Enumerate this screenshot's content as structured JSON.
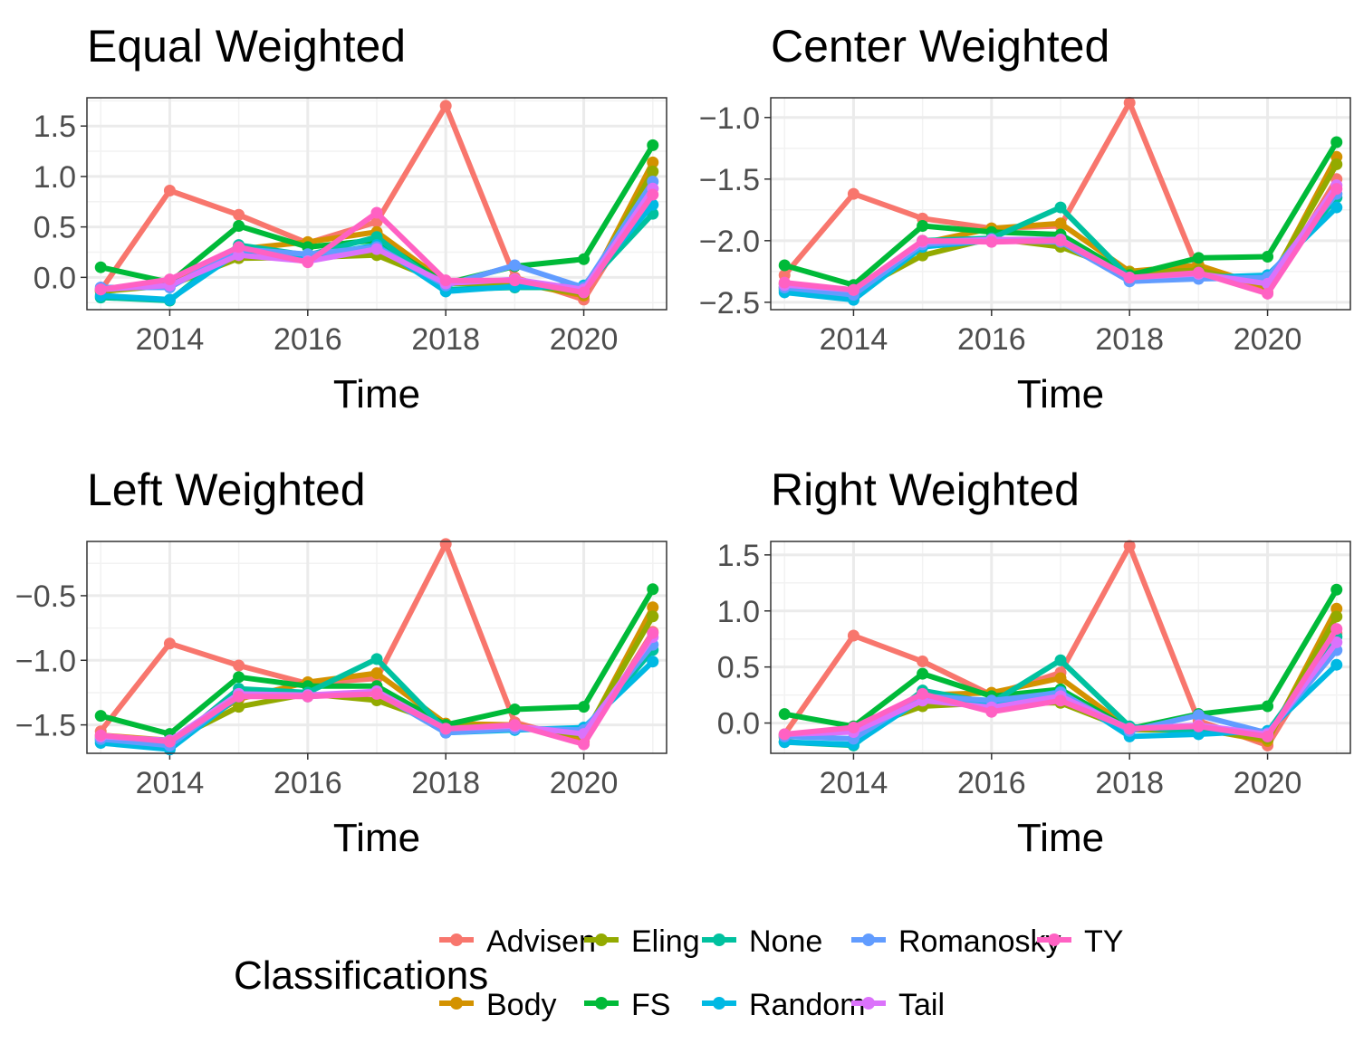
{
  "legend": {
    "title": "Classifications",
    "items": [
      {
        "name": "Advisen",
        "color": "#F8766D"
      },
      {
        "name": "Body",
        "color": "#D39200"
      },
      {
        "name": "Eling",
        "color": "#93AA00"
      },
      {
        "name": "FS",
        "color": "#00BA38"
      },
      {
        "name": "None",
        "color": "#00C19F"
      },
      {
        "name": "Random",
        "color": "#00B9E3"
      },
      {
        "name": "Romanosky",
        "color": "#619CFF"
      },
      {
        "name": "Tail",
        "color": "#DB72FB"
      },
      {
        "name": "TY",
        "color": "#FF61C3"
      }
    ]
  },
  "chart_data": [
    {
      "type": "line",
      "title": "Equal Weighted",
      "xlabel": "Time",
      "ylabel": "",
      "xlim": [
        2012.8,
        2021.2
      ],
      "ylim": [
        -0.32,
        1.78
      ],
      "xticks": [
        2014,
        2016,
        2018,
        2020
      ],
      "yticks": [
        0.0,
        0.5,
        1.0,
        1.5
      ],
      "ytick_labels": [
        "0.0",
        "0.5",
        "1.0",
        "1.5"
      ],
      "x": [
        2013,
        2014,
        2015,
        2016,
        2017,
        2018,
        2019,
        2020,
        2021
      ],
      "series": [
        {
          "name": "Advisen",
          "values": [
            -0.13,
            0.86,
            0.62,
            0.34,
            0.55,
            1.7,
            0.0,
            -0.22,
            0.88
          ]
        },
        {
          "name": "Body",
          "values": [
            -0.12,
            -0.07,
            0.28,
            0.35,
            0.45,
            -0.05,
            -0.05,
            -0.18,
            1.14
          ]
        },
        {
          "name": "Eling",
          "values": [
            -0.14,
            -0.08,
            0.19,
            0.2,
            0.22,
            -0.06,
            -0.06,
            -0.16,
            1.05
          ]
        },
        {
          "name": "FS",
          "values": [
            0.1,
            -0.05,
            0.51,
            0.3,
            0.37,
            -0.06,
            0.11,
            0.18,
            1.31
          ]
        },
        {
          "name": "None",
          "values": [
            -0.2,
            -0.23,
            0.32,
            0.22,
            0.4,
            -0.12,
            -0.1,
            -0.1,
            0.63
          ]
        },
        {
          "name": "Random",
          "values": [
            -0.18,
            -0.22,
            0.25,
            0.2,
            0.32,
            -0.14,
            -0.09,
            -0.08,
            0.72
          ]
        },
        {
          "name": "Romanosky",
          "values": [
            -0.1,
            -0.1,
            0.28,
            0.23,
            0.3,
            -0.08,
            0.12,
            -0.1,
            0.95
          ]
        },
        {
          "name": "Tail",
          "values": [
            -0.12,
            -0.08,
            0.22,
            0.16,
            0.28,
            -0.06,
            -0.02,
            -0.12,
            0.88
          ]
        },
        {
          "name": "TY",
          "values": [
            -0.12,
            -0.02,
            0.3,
            0.15,
            0.64,
            -0.03,
            -0.03,
            -0.15,
            0.82
          ]
        }
      ]
    },
    {
      "type": "line",
      "title": "Center Weighted",
      "xlabel": "Time",
      "ylabel": "",
      "xlim": [
        2012.8,
        2021.2
      ],
      "ylim": [
        -2.56,
        -0.84
      ],
      "xticks": [
        2014,
        2016,
        2018,
        2020
      ],
      "yticks": [
        -2.5,
        -2.0,
        -1.5,
        -1.0
      ],
      "ytick_labels": [
        "−2.5",
        "−2.0",
        "−1.5",
        "−1.0"
      ],
      "x": [
        2013,
        2014,
        2015,
        2016,
        2017,
        2018,
        2019,
        2020,
        2021
      ],
      "series": [
        {
          "name": "Advisen",
          "values": [
            -2.28,
            -1.62,
            -1.82,
            -1.9,
            -1.88,
            -0.88,
            -2.25,
            -2.42,
            -1.5
          ]
        },
        {
          "name": "Body",
          "values": [
            -2.35,
            -2.4,
            -2.02,
            -1.9,
            -1.86,
            -2.25,
            -2.2,
            -2.38,
            -1.32
          ]
        },
        {
          "name": "Eling",
          "values": [
            -2.38,
            -2.42,
            -2.12,
            -1.98,
            -2.05,
            -2.26,
            -2.24,
            -2.36,
            -1.38
          ]
        },
        {
          "name": "FS",
          "values": [
            -2.2,
            -2.36,
            -1.88,
            -1.93,
            -1.95,
            -2.28,
            -2.14,
            -2.13,
            -1.2
          ]
        },
        {
          "name": "None",
          "values": [
            -2.4,
            -2.45,
            -2.0,
            -1.98,
            -1.73,
            -2.3,
            -2.28,
            -2.32,
            -1.65
          ]
        },
        {
          "name": "Random",
          "values": [
            -2.42,
            -2.48,
            -2.05,
            -2.0,
            -2.0,
            -2.33,
            -2.3,
            -2.28,
            -1.73
          ]
        },
        {
          "name": "Romanosky",
          "values": [
            -2.38,
            -2.44,
            -2.03,
            -2.0,
            -2.01,
            -2.33,
            -2.31,
            -2.3,
            -1.62
          ]
        },
        {
          "name": "Tail",
          "values": [
            -2.36,
            -2.4,
            -2.01,
            -1.99,
            -1.99,
            -2.3,
            -2.27,
            -2.35,
            -1.55
          ]
        },
        {
          "name": "TY",
          "values": [
            -2.34,
            -2.4,
            -2.0,
            -2.01,
            -2.0,
            -2.3,
            -2.26,
            -2.43,
            -1.58
          ]
        }
      ]
    },
    {
      "type": "line",
      "title": "Left Weighted",
      "xlabel": "Time",
      "ylabel": "",
      "xlim": [
        2012.8,
        2021.2
      ],
      "ylim": [
        -1.72,
        -0.08
      ],
      "xticks": [
        2014,
        2016,
        2018,
        2020
      ],
      "yticks": [
        -1.5,
        -1.0,
        -0.5
      ],
      "ytick_labels": [
        "−1.5",
        "−1.0",
        "−0.5"
      ],
      "x": [
        2013,
        2014,
        2015,
        2016,
        2017,
        2018,
        2019,
        2020,
        2021
      ],
      "series": [
        {
          "name": "Advisen",
          "values": [
            -1.55,
            -0.87,
            -1.04,
            -1.18,
            -1.14,
            -0.1,
            -1.48,
            -1.63,
            -0.78
          ]
        },
        {
          "name": "Body",
          "values": [
            -1.58,
            -1.62,
            -1.3,
            -1.17,
            -1.1,
            -1.49,
            -1.5,
            -1.6,
            -0.59
          ]
        },
        {
          "name": "Eling",
          "values": [
            -1.6,
            -1.63,
            -1.36,
            -1.26,
            -1.31,
            -1.5,
            -1.52,
            -1.58,
            -0.66
          ]
        },
        {
          "name": "FS",
          "values": [
            -1.43,
            -1.57,
            -1.13,
            -1.2,
            -1.2,
            -1.5,
            -1.38,
            -1.36,
            -0.45
          ]
        },
        {
          "name": "None",
          "values": [
            -1.62,
            -1.66,
            -1.22,
            -1.25,
            -0.99,
            -1.54,
            -1.52,
            -1.55,
            -0.92
          ]
        },
        {
          "name": "Random",
          "values": [
            -1.64,
            -1.69,
            -1.28,
            -1.27,
            -1.25,
            -1.56,
            -1.54,
            -1.52,
            -1.01
          ]
        },
        {
          "name": "Romanosky",
          "values": [
            -1.61,
            -1.66,
            -1.27,
            -1.28,
            -1.25,
            -1.56,
            -1.53,
            -1.54,
            -0.88
          ]
        },
        {
          "name": "Tail",
          "values": [
            -1.59,
            -1.62,
            -1.26,
            -1.27,
            -1.24,
            -1.53,
            -1.51,
            -1.57,
            -0.82
          ]
        },
        {
          "name": "TY",
          "values": [
            -1.58,
            -1.63,
            -1.28,
            -1.28,
            -1.26,
            -1.53,
            -1.5,
            -1.65,
            -0.79
          ]
        }
      ]
    },
    {
      "type": "line",
      "title": "Right Weighted",
      "xlabel": "Time",
      "ylabel": "",
      "xlim": [
        2012.8,
        2021.2
      ],
      "ylim": [
        -0.27,
        1.62
      ],
      "xticks": [
        2014,
        2016,
        2018,
        2020
      ],
      "yticks": [
        0.0,
        0.5,
        1.0,
        1.5
      ],
      "ytick_labels": [
        "0.0",
        "0.5",
        "1.0",
        "1.5"
      ],
      "x": [
        2013,
        2014,
        2015,
        2016,
        2017,
        2018,
        2019,
        2020,
        2021
      ],
      "series": [
        {
          "name": "Advisen",
          "values": [
            -0.1,
            0.78,
            0.55,
            0.25,
            0.45,
            1.58,
            0.02,
            -0.2,
            0.8
          ]
        },
        {
          "name": "Body",
          "values": [
            -0.11,
            -0.06,
            0.25,
            0.27,
            0.4,
            -0.05,
            -0.05,
            -0.16,
            1.02
          ]
        },
        {
          "name": "Eling",
          "values": [
            -0.13,
            -0.07,
            0.15,
            0.18,
            0.18,
            -0.06,
            -0.06,
            -0.14,
            0.95
          ]
        },
        {
          "name": "FS",
          "values": [
            0.08,
            -0.03,
            0.44,
            0.24,
            0.3,
            -0.05,
            0.08,
            0.15,
            1.19
          ]
        },
        {
          "name": "None",
          "values": [
            -0.17,
            -0.2,
            0.29,
            0.18,
            0.56,
            -0.03,
            -0.08,
            -0.08,
            0.77
          ]
        },
        {
          "name": "Random",
          "values": [
            -0.17,
            -0.19,
            0.22,
            0.17,
            0.28,
            -0.12,
            -0.1,
            -0.07,
            0.52
          ]
        },
        {
          "name": "Romanosky",
          "values": [
            -0.12,
            -0.14,
            0.24,
            0.2,
            0.27,
            -0.07,
            0.07,
            -0.09,
            0.65
          ]
        },
        {
          "name": "Tail",
          "values": [
            -0.1,
            -0.08,
            0.2,
            0.14,
            0.24,
            -0.05,
            -0.02,
            -0.1,
            0.72
          ]
        },
        {
          "name": "TY",
          "values": [
            -0.1,
            -0.04,
            0.26,
            0.1,
            0.2,
            -0.05,
            -0.03,
            -0.12,
            0.84
          ]
        }
      ]
    }
  ]
}
